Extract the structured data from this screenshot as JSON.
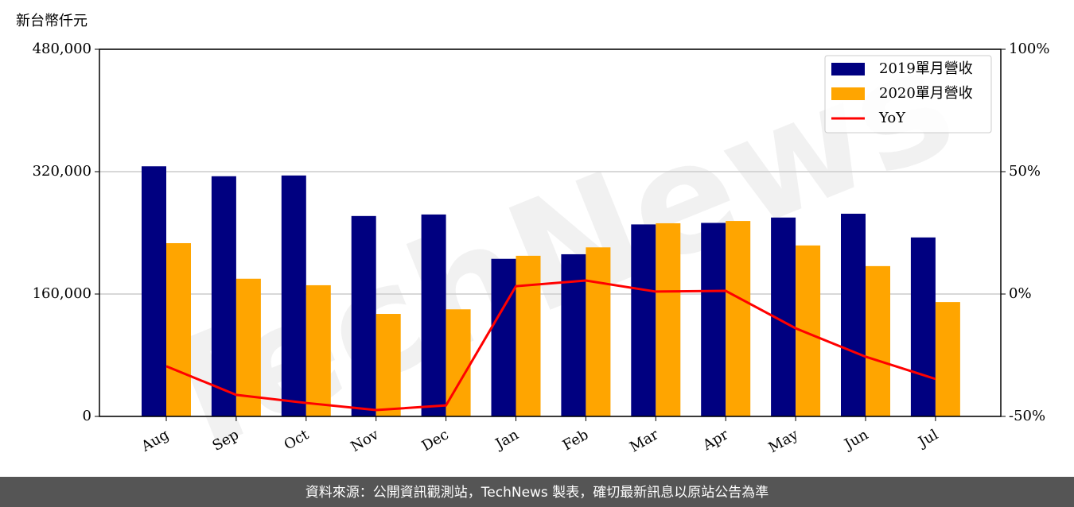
{
  "chart_data": {
    "type": "bar_line",
    "y_label": "新台幣仟元",
    "watermark": "TechNews",
    "footer": "資料來源：公開資訊觀測站，TechNews 製表，確切最新訊息以原站公告為準",
    "categories": [
      "Aug",
      "Sep",
      "Oct",
      "Nov",
      "Dec",
      "Jan",
      "Feb",
      "Mar",
      "Apr",
      "May",
      "Jun",
      "Jul"
    ],
    "series": [
      {
        "name": "2019單月營收",
        "color": "#000080",
        "kind": "bar",
        "values": [
          327000,
          314000,
          315000,
          262000,
          264000,
          206000,
          212000,
          251000,
          253000,
          260000,
          265000,
          234000
        ]
      },
      {
        "name": "2020單月營收",
        "color": "#ffa500",
        "kind": "bar",
        "values": [
          226500,
          180000,
          171500,
          134000,
          140000,
          210000,
          221000,
          252500,
          255500,
          223500,
          196500,
          149500
        ]
      },
      {
        "name": "YoY",
        "color": "#ff0000",
        "kind": "line",
        "axis": "y2",
        "values": [
          -29.5,
          -41.2,
          -44.5,
          -47.4,
          -45.5,
          3.2,
          5.5,
          1.0,
          1.3,
          -14.0,
          -25.6,
          -34.7
        ]
      }
    ],
    "ylim": [
      0,
      480000
    ],
    "yticks": [
      {
        "value": 0,
        "label": "0"
      },
      {
        "value": 160000,
        "label": "160,000"
      },
      {
        "value": 320000,
        "label": "320,000"
      },
      {
        "value": 480000,
        "label": "480,000"
      }
    ],
    "y2lim": [
      -50,
      100
    ],
    "y2ticks": [
      {
        "value": -50,
        "label": "-50%"
      },
      {
        "value": 0,
        "label": "0%"
      },
      {
        "value": 50,
        "label": "50%"
      },
      {
        "value": 100,
        "label": "100%"
      }
    ],
    "grid": true,
    "legend": "upper right"
  }
}
